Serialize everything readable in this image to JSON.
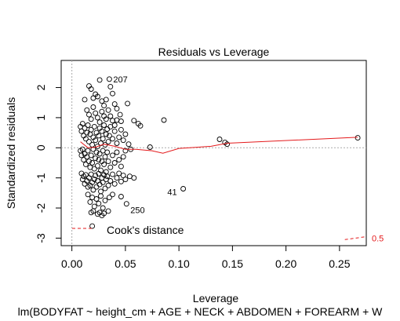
{
  "chart_data": {
    "type": "scatter",
    "title": "Residuals vs Leverage",
    "xlabel": "Leverage",
    "ylabel": "Standardized residuals",
    "subtitle": "lm(BODYFAT ~ height_cm + AGE + NECK + ABDOMEN + FOREARM + W",
    "xlim": [
      -0.01,
      0.275
    ],
    "ylim": [
      -3.25,
      2.9
    ],
    "x_ticks": [
      0.0,
      0.05,
      0.1,
      0.15,
      0.2,
      0.25
    ],
    "x_tick_labels": [
      "0.00",
      "0.05",
      "0.10",
      "0.15",
      "0.20",
      "0.25"
    ],
    "y_ticks": [
      -3,
      -2,
      -1,
      0,
      1,
      2
    ],
    "y_tick_labels": [
      "-3",
      "-2",
      "-1",
      "0",
      "1",
      "2"
    ],
    "colors": {
      "points": "#000000",
      "smoother": "#e41a1c",
      "cooks": "#e41a1c",
      "reference": "#aaaaaa"
    },
    "legend": {
      "label": "Cook's distance",
      "position": "bottom-left"
    },
    "labeled_points": [
      {
        "label": "207",
        "x": 0.035,
        "y": 2.28
      },
      {
        "label": "41",
        "x": 0.104,
        "y": -1.36
      },
      {
        "label": "250",
        "x": 0.051,
        "y": -1.86
      }
    ],
    "points": [
      [
        0.016,
        2.05
      ],
      [
        0.018,
        1.95
      ],
      [
        0.02,
        1.65
      ],
      [
        0.022,
        1.78
      ],
      [
        0.024,
        1.7
      ],
      [
        0.026,
        2.25
      ],
      [
        0.028,
        1.55
      ],
      [
        0.03,
        1.4
      ],
      [
        0.032,
        1.6
      ],
      [
        0.036,
        2.03
      ],
      [
        0.038,
        1.8
      ],
      [
        0.04,
        1.45
      ],
      [
        0.042,
        1.3
      ],
      [
        0.045,
        1.1
      ],
      [
        0.052,
        1.47
      ],
      [
        0.046,
        0.88
      ],
      [
        0.058,
        0.9
      ],
      [
        0.062,
        0.8
      ],
      [
        0.064,
        0.73
      ],
      [
        0.086,
        0.92
      ],
      [
        0.012,
        1.6
      ],
      [
        0.014,
        1.25
      ],
      [
        0.016,
        1.1
      ],
      [
        0.018,
        0.95
      ],
      [
        0.02,
        1.35
      ],
      [
        0.022,
        1.15
      ],
      [
        0.024,
        1.0
      ],
      [
        0.026,
        0.85
      ],
      [
        0.028,
        1.2
      ],
      [
        0.03,
        1.05
      ],
      [
        0.032,
        0.95
      ],
      [
        0.034,
        1.25
      ],
      [
        0.036,
        1.05
      ],
      [
        0.038,
        0.9
      ],
      [
        0.04,
        0.75
      ],
      [
        0.042,
        0.92
      ],
      [
        0.008,
        0.7
      ],
      [
        0.009,
        0.55
      ],
      [
        0.01,
        0.8
      ],
      [
        0.011,
        0.4
      ],
      [
        0.012,
        0.65
      ],
      [
        0.013,
        0.3
      ],
      [
        0.014,
        0.5
      ],
      [
        0.015,
        0.75
      ],
      [
        0.016,
        0.2
      ],
      [
        0.017,
        0.45
      ],
      [
        0.018,
        0.6
      ],
      [
        0.019,
        0.1
      ],
      [
        0.02,
        0.35
      ],
      [
        0.021,
        0.7
      ],
      [
        0.022,
        0.25
      ],
      [
        0.023,
        0.5
      ],
      [
        0.024,
        0.05
      ],
      [
        0.025,
        0.4
      ],
      [
        0.026,
        0.65
      ],
      [
        0.027,
        0.15
      ],
      [
        0.028,
        0.55
      ],
      [
        0.029,
        0.3
      ],
      [
        0.03,
        0.75
      ],
      [
        0.031,
        0.1
      ],
      [
        0.032,
        0.45
      ],
      [
        0.033,
        0.62
      ],
      [
        0.034,
        0.2
      ],
      [
        0.035,
        0.4
      ],
      [
        0.036,
        0.7
      ],
      [
        0.038,
        0.3
      ],
      [
        0.04,
        0.55
      ],
      [
        0.042,
        0.15
      ],
      [
        0.044,
        0.35
      ],
      [
        0.046,
        0.6
      ],
      [
        0.048,
        0.25
      ],
      [
        0.05,
        0.45
      ],
      [
        0.053,
        0.12
      ],
      [
        0.008,
        -0.1
      ],
      [
        0.009,
        -0.25
      ],
      [
        0.01,
        -0.05
      ],
      [
        0.011,
        -0.4
      ],
      [
        0.012,
        -0.2
      ],
      [
        0.013,
        -0.55
      ],
      [
        0.014,
        -0.3
      ],
      [
        0.015,
        -0.1
      ],
      [
        0.016,
        -0.45
      ],
      [
        0.017,
        -0.65
      ],
      [
        0.018,
        -0.25
      ],
      [
        0.019,
        -0.5
      ],
      [
        0.02,
        -0.05
      ],
      [
        0.021,
        -0.7
      ],
      [
        0.022,
        -0.35
      ],
      [
        0.023,
        -0.15
      ],
      [
        0.024,
        -0.6
      ],
      [
        0.025,
        -0.4
      ],
      [
        0.026,
        -0.2
      ],
      [
        0.027,
        -0.75
      ],
      [
        0.028,
        -0.45
      ],
      [
        0.029,
        -0.1
      ],
      [
        0.03,
        -0.55
      ],
      [
        0.031,
        -0.3
      ],
      [
        0.032,
        -0.8
      ],
      [
        0.033,
        -0.15
      ],
      [
        0.034,
        -0.45
      ],
      [
        0.036,
        -0.65
      ],
      [
        0.038,
        -0.25
      ],
      [
        0.04,
        -0.5
      ],
      [
        0.042,
        -0.15
      ],
      [
        0.044,
        -0.4
      ],
      [
        0.046,
        -0.62
      ],
      [
        0.048,
        -0.3
      ],
      [
        0.05,
        -0.1
      ],
      [
        0.055,
        -0.05
      ],
      [
        0.009,
        -0.85
      ],
      [
        0.01,
        -1.05
      ],
      [
        0.011,
        -0.95
      ],
      [
        0.012,
        -1.2
      ],
      [
        0.013,
        -0.9
      ],
      [
        0.014,
        -1.1
      ],
      [
        0.015,
        -1.3
      ],
      [
        0.016,
        -1.0
      ],
      [
        0.017,
        -1.25
      ],
      [
        0.018,
        -0.88
      ],
      [
        0.019,
        -1.15
      ],
      [
        0.02,
        -1.4
      ],
      [
        0.021,
        -1.05
      ],
      [
        0.022,
        -0.92
      ],
      [
        0.023,
        -1.3
      ],
      [
        0.024,
        -1.1
      ],
      [
        0.025,
        -0.86
      ],
      [
        0.026,
        -1.22
      ],
      [
        0.027,
        -1.45
      ],
      [
        0.028,
        -1.0
      ],
      [
        0.029,
        -1.15
      ],
      [
        0.03,
        -0.9
      ],
      [
        0.031,
        -1.35
      ],
      [
        0.032,
        -1.05
      ],
      [
        0.033,
        -0.95
      ],
      [
        0.034,
        -1.25
      ],
      [
        0.036,
        -1.1
      ],
      [
        0.038,
        -0.88
      ],
      [
        0.04,
        -1.2
      ],
      [
        0.042,
        -1.0
      ],
      [
        0.044,
        -0.85
      ],
      [
        0.046,
        -1.12
      ],
      [
        0.048,
        -0.92
      ],
      [
        0.05,
        -1.05
      ],
      [
        0.054,
        -0.95
      ],
      [
        0.058,
        -1.0
      ],
      [
        0.015,
        -1.55
      ],
      [
        0.017,
        -1.8
      ],
      [
        0.019,
        -1.65
      ],
      [
        0.021,
        -1.95
      ],
      [
        0.023,
        -1.7
      ],
      [
        0.025,
        -1.85
      ],
      [
        0.027,
        -1.6
      ],
      [
        0.029,
        -2.0
      ],
      [
        0.031,
        -1.75
      ],
      [
        0.035,
        -1.65
      ],
      [
        0.038,
        -1.55
      ],
      [
        0.046,
        -1.62
      ],
      [
        0.018,
        -2.15
      ],
      [
        0.02,
        -2.1
      ],
      [
        0.024,
        -2.2
      ],
      [
        0.026,
        -2.15
      ],
      [
        0.03,
        -2.18
      ],
      [
        0.034,
        -2.1
      ],
      [
        0.028,
        -2.25
      ],
      [
        0.019,
        -2.6
      ],
      [
        0.035,
        2.28
      ],
      [
        0.104,
        -1.36
      ],
      [
        0.051,
        -1.86
      ],
      [
        0.073,
        0.02
      ],
      [
        0.138,
        0.28
      ],
      [
        0.143,
        0.18
      ],
      [
        0.145,
        0.12
      ],
      [
        0.267,
        0.33
      ]
    ],
    "smoother": [
      [
        0.008,
        0.2
      ],
      [
        0.015,
        0.0
      ],
      [
        0.022,
        0.02
      ],
      [
        0.03,
        0.12
      ],
      [
        0.04,
        0.05
      ],
      [
        0.05,
        -0.05
      ],
      [
        0.06,
        -0.05
      ],
      [
        0.075,
        -0.1
      ],
      [
        0.085,
        -0.18
      ],
      [
        0.1,
        -0.02
      ],
      [
        0.13,
        0.05
      ],
      [
        0.145,
        0.15
      ],
      [
        0.267,
        0.35
      ]
    ],
    "cooks_curve": [
      [
        0.255,
        -3.05
      ],
      [
        0.275,
        -2.95
      ]
    ],
    "cooks_label": "0.5"
  }
}
